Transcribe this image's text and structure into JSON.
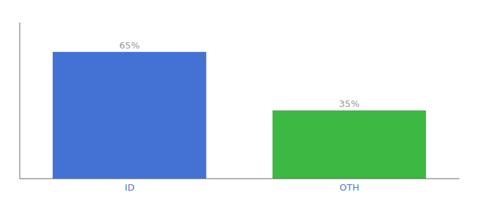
{
  "chart_data": {
    "type": "bar",
    "categories": [
      "ID",
      "OTH"
    ],
    "values": [
      65,
      35
    ],
    "value_labels": [
      "65%",
      "35%"
    ],
    "data_labels": true,
    "colors": [
      "#4472D4",
      "#3CB843"
    ],
    "ylim": [
      0,
      80
    ],
    "tick_labels": "x",
    "grid": false
  }
}
